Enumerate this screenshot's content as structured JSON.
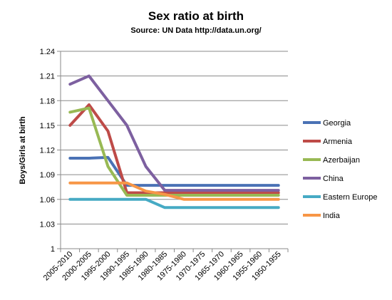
{
  "chart_data": {
    "type": "line",
    "title": "Sex ratio at birth",
    "subtitle": "Source: UN Data http://data.un.org/",
    "ylabel": "Boys/Girls at birth",
    "xlabel": "",
    "ylim": [
      1,
      1.24
    ],
    "y_ticks": [
      "1",
      "1.03",
      "1.06",
      "1.09",
      "1.12",
      "1.15",
      "1.18",
      "1.21",
      "1.24"
    ],
    "grid": "horizontal",
    "legend": "right",
    "categories": [
      "2005-2010",
      "2000-2005",
      "1995-2000",
      "1990-1995",
      "1985-1990",
      "1980-1985",
      "1975-1980",
      "1970-1975",
      "1965-1970",
      "1960-1965",
      "1955-1960",
      "1950-1955"
    ],
    "series": [
      {
        "name": "Georgia",
        "color": "#4A72B5",
        "values": [
          1.11,
          1.11,
          1.111,
          1.077,
          1.077,
          1.077,
          1.077,
          1.077,
          1.077,
          1.077,
          1.077,
          1.077
        ]
      },
      {
        "name": "Armenia",
        "color": "#BE4B48",
        "values": [
          1.15,
          1.175,
          1.143,
          1.068,
          1.068,
          1.068,
          1.068,
          1.068,
          1.068,
          1.068,
          1.068,
          1.068
        ]
      },
      {
        "name": "Azerbaijan",
        "color": "#98B954",
        "values": [
          1.166,
          1.171,
          1.1,
          1.065,
          1.065,
          1.065,
          1.065,
          1.065,
          1.065,
          1.065,
          1.065,
          1.065
        ]
      },
      {
        "name": "China",
        "color": "#7D60A0",
        "values": [
          1.2,
          1.21,
          1.18,
          1.15,
          1.1,
          1.071,
          1.071,
          1.071,
          1.071,
          1.071,
          1.071,
          1.071
        ]
      },
      {
        "name": "Eastern Europe",
        "color": "#46AAC4",
        "values": [
          1.06,
          1.06,
          1.06,
          1.06,
          1.06,
          1.05,
          1.05,
          1.05,
          1.05,
          1.05,
          1.05,
          1.05
        ]
      },
      {
        "name": "India",
        "color": "#F79646",
        "values": [
          1.08,
          1.08,
          1.08,
          1.08,
          1.07,
          1.066,
          1.06,
          1.06,
          1.06,
          1.06,
          1.06,
          1.06
        ]
      }
    ]
  }
}
